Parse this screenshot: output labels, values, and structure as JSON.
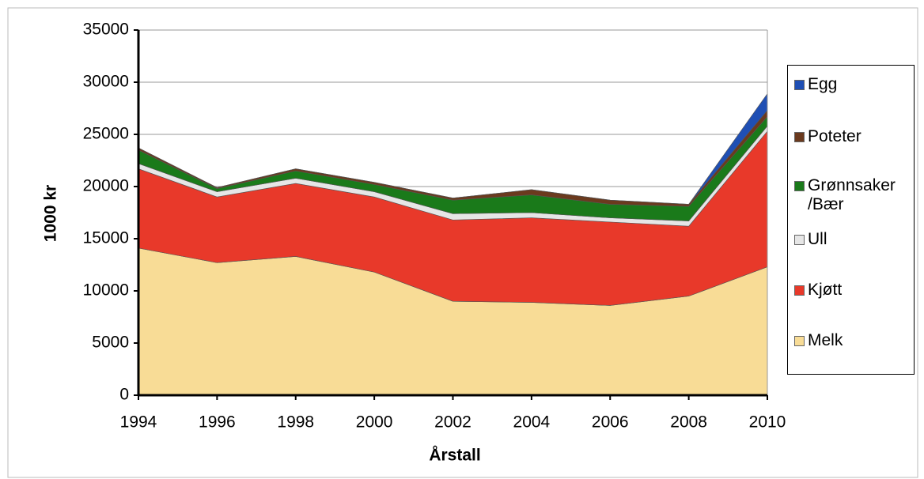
{
  "chart_data": {
    "type": "stacked-area",
    "x": [
      1994,
      1996,
      1998,
      2000,
      2002,
      2004,
      2006,
      2008,
      2010
    ],
    "xlim": [
      1994,
      2010
    ],
    "xticks": [
      1994,
      1996,
      1998,
      2000,
      2002,
      2004,
      2006,
      2008,
      2010
    ],
    "ylim": [
      0,
      35000
    ],
    "yticks": [
      0,
      5000,
      10000,
      15000,
      20000,
      25000,
      30000,
      35000
    ],
    "x_label": "Årstall",
    "y_label": "1000 kr",
    "grid": true,
    "legend": "right",
    "series": [
      {
        "name": "Melk",
        "color": "#f8dc96",
        "values": [
          14100,
          12700,
          13300,
          11800,
          9000,
          8900,
          8600,
          9500,
          12300
        ]
      },
      {
        "name": "Kjøtt",
        "color": "#e8392a",
        "values": [
          7600,
          6300,
          7000,
          7200,
          7800,
          8100,
          8000,
          6700,
          13000
        ]
      },
      {
        "name": "Ull",
        "color": "#e6e6e6",
        "values": [
          500,
          500,
          500,
          500,
          600,
          500,
          400,
          500,
          500
        ]
      },
      {
        "name": "Grønnsaker /Bær",
        "color": "#1a7a1a",
        "values": [
          1300,
          300,
          700,
          700,
          1300,
          1700,
          1300,
          1400,
          900
        ]
      },
      {
        "name": "Poteter",
        "color": "#6b3a1e",
        "values": [
          200,
          100,
          200,
          200,
          200,
          500,
          400,
          200,
          600
        ]
      },
      {
        "name": "Egg",
        "color": "#1f4fb4",
        "values": [
          0,
          0,
          0,
          0,
          0,
          0,
          0,
          0,
          1600
        ]
      }
    ]
  }
}
